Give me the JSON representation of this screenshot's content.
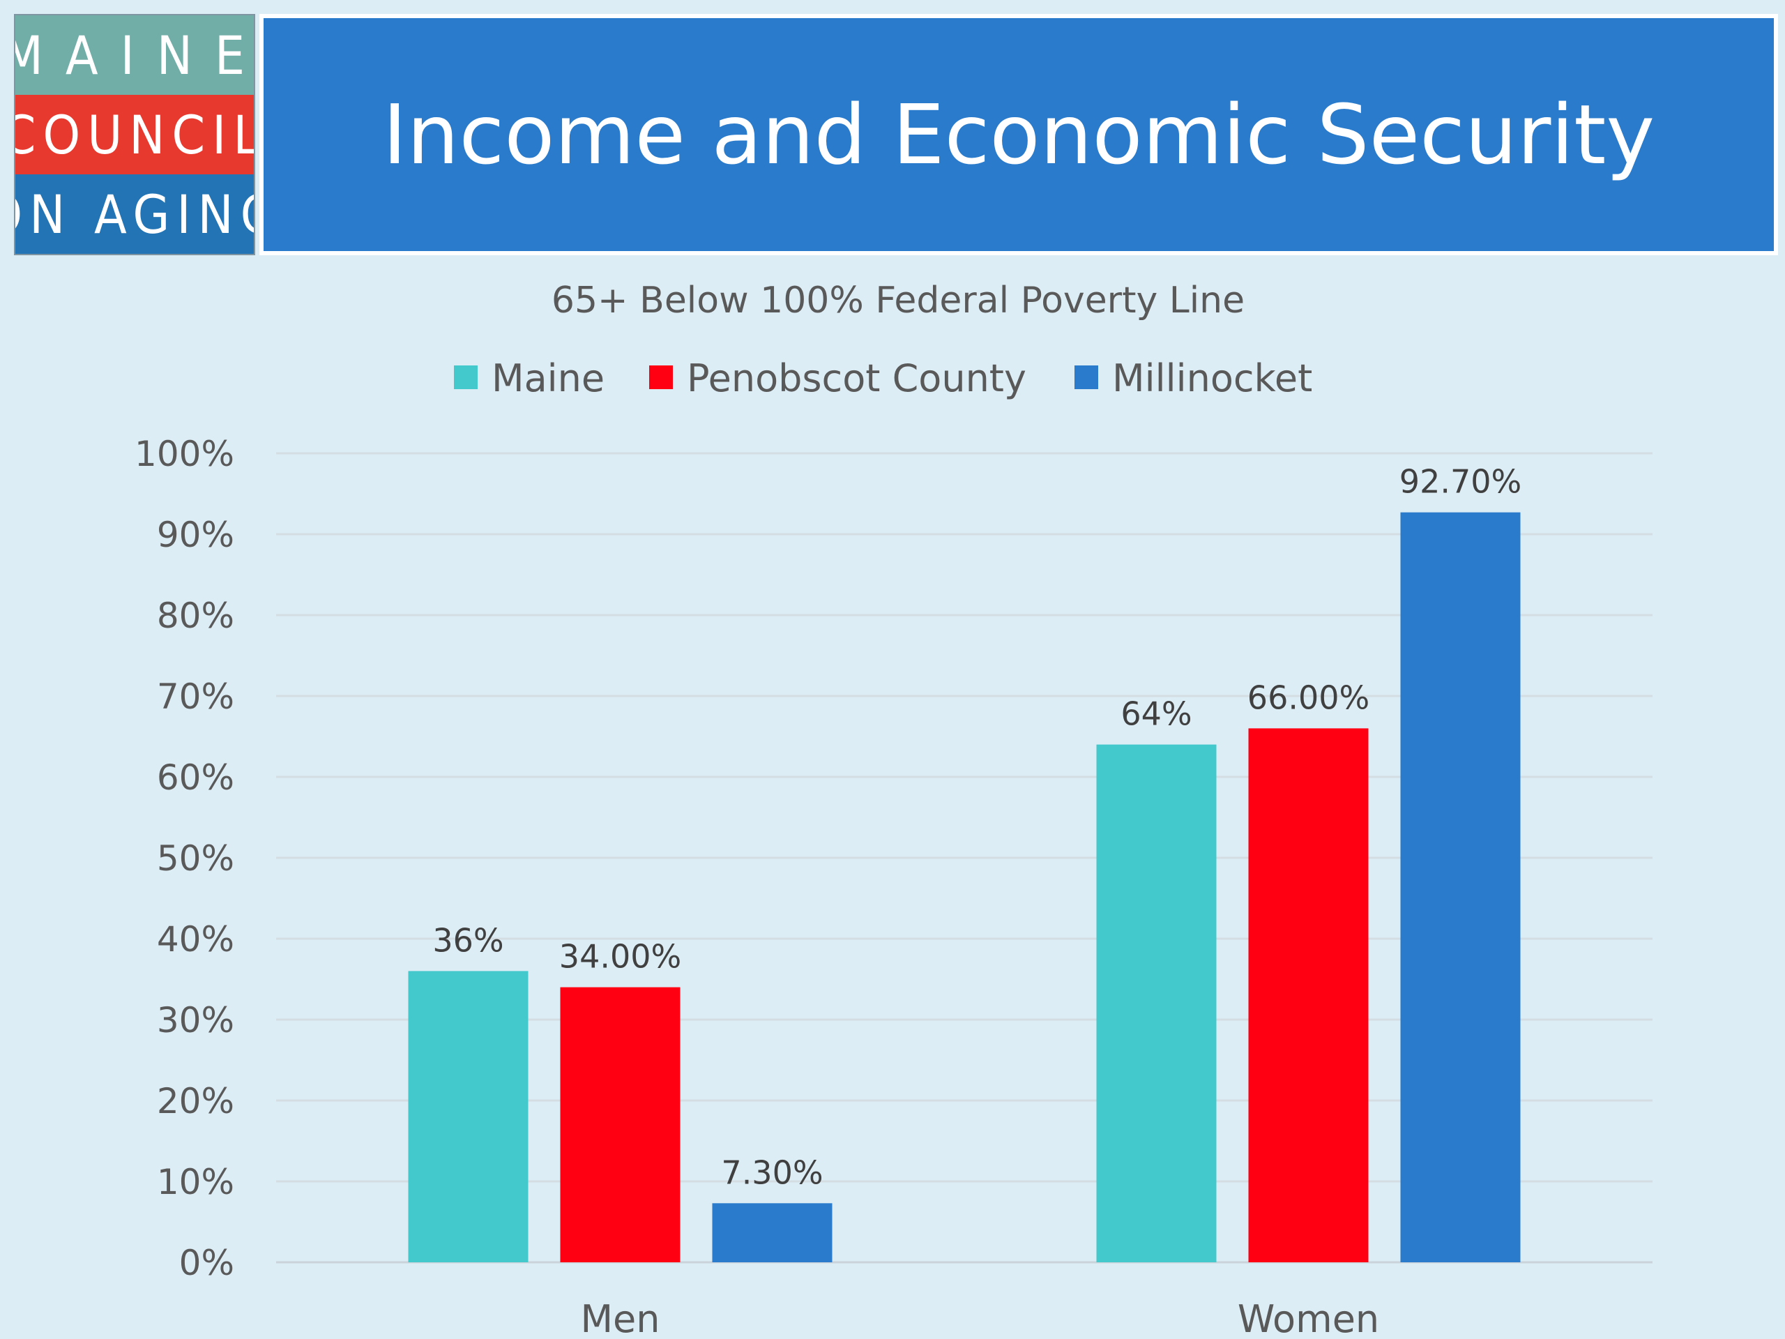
{
  "logo": {
    "line1": "MAINE",
    "line2": "COUNCIL",
    "line3": "ON AGING"
  },
  "slide_title": "Income and Economic Security",
  "colors": {
    "Maine": "#43c8cc",
    "Penobscot County": "#ff0013",
    "Millinocket": "#2a7bcb"
  },
  "chart_data": {
    "type": "bar",
    "title": "65+ Below 100% Federal Poverty Line",
    "categories": [
      "Men",
      "Women"
    ],
    "series": [
      {
        "name": "Maine",
        "values": [
          36,
          64
        ],
        "labels": [
          "36%",
          "64%"
        ]
      },
      {
        "name": "Penobscot County",
        "values": [
          34,
          66
        ],
        "labels": [
          "34.00%",
          "66.00%"
        ]
      },
      {
        "name": "Millinocket",
        "values": [
          7.3,
          92.7
        ],
        "labels": [
          "7.30%",
          "92.70%"
        ]
      }
    ],
    "ylim": [
      0,
      100
    ],
    "yticks": [
      "0%",
      "10%",
      "20%",
      "30%",
      "40%",
      "50%",
      "60%",
      "70%",
      "80%",
      "90%",
      "100%"
    ],
    "grid": true,
    "legend": "top"
  }
}
